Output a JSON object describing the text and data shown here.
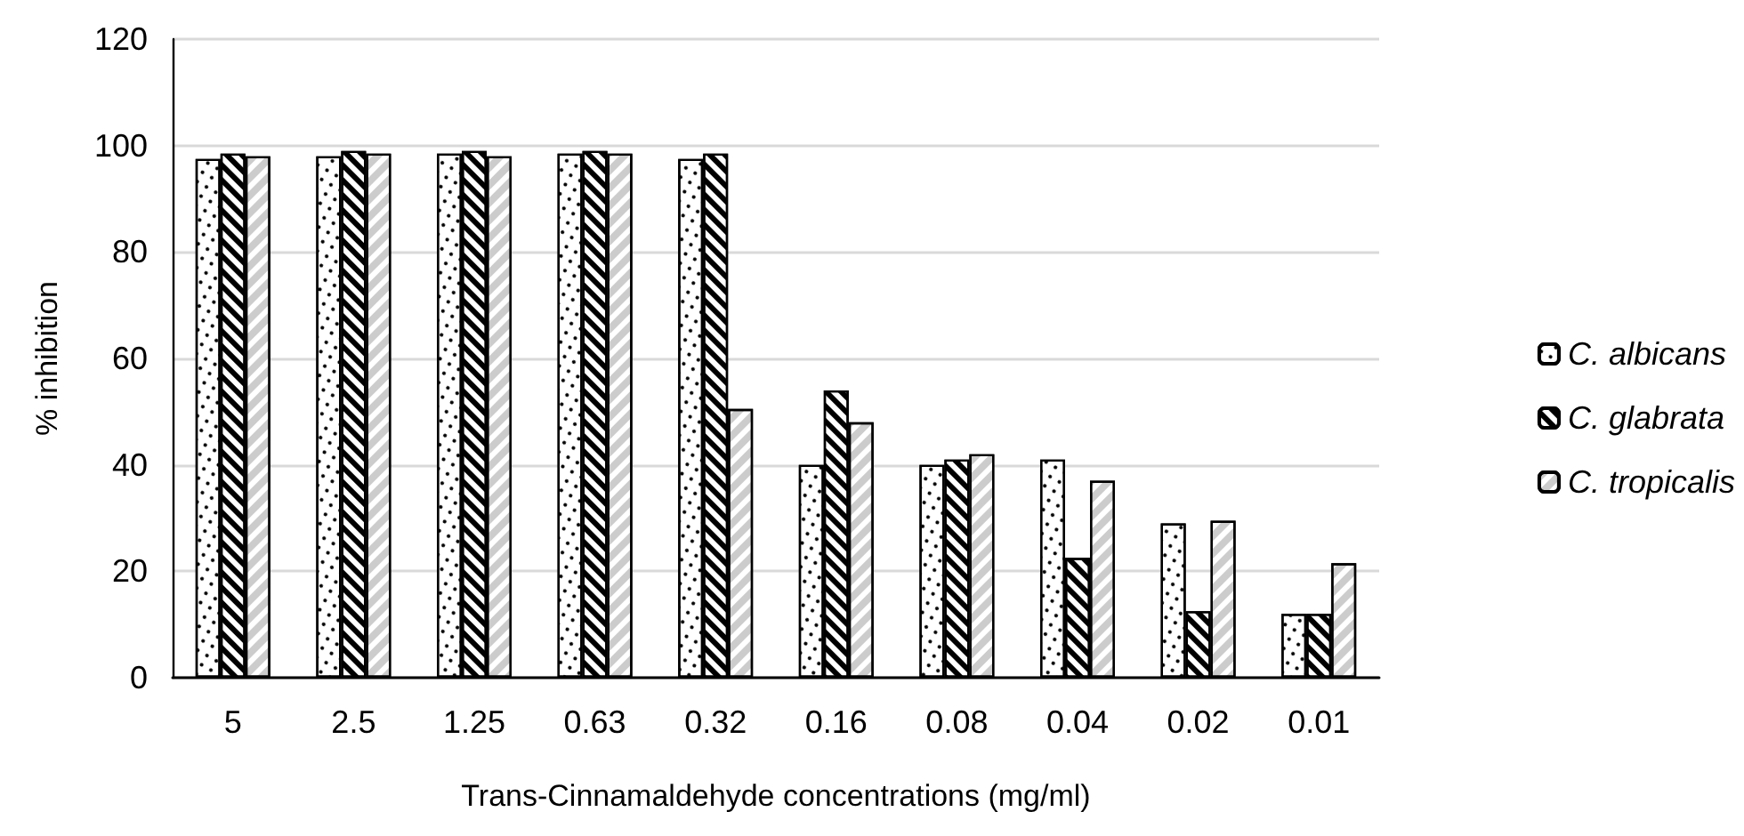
{
  "chart_data": {
    "type": "bar",
    "xlabel": "Trans-Cinnamaldehyde concentrations (mg/ml)",
    "ylabel": "% inhibition",
    "categories": [
      "5",
      "2.5",
      "1.25",
      "0.63",
      "0.32",
      "0.16",
      "0.08",
      "0.04",
      "0.02",
      "0.01"
    ],
    "series": [
      {
        "name": "C. albicans",
        "color": "#ffffff",
        "values": [
          97.5,
          98,
          98.5,
          98.5,
          97.5,
          40,
          40,
          41,
          29,
          12
        ]
      },
      {
        "name": "C. glabrata",
        "color": "#ffffff",
        "values": [
          98.5,
          99,
          99,
          99,
          98.5,
          54,
          41,
          22.5,
          12.5,
          12
        ]
      },
      {
        "name": "C. tropicalis",
        "color": "#ffffff",
        "values": [
          98,
          98.5,
          98,
          98.5,
          50.5,
          48,
          42,
          37,
          29.5,
          21.5
        ]
      }
    ],
    "ylim": [
      0,
      120
    ],
    "yticks": [
      0,
      20,
      40,
      60,
      80,
      100,
      120
    ],
    "grid": "y",
    "legend": "right"
  }
}
